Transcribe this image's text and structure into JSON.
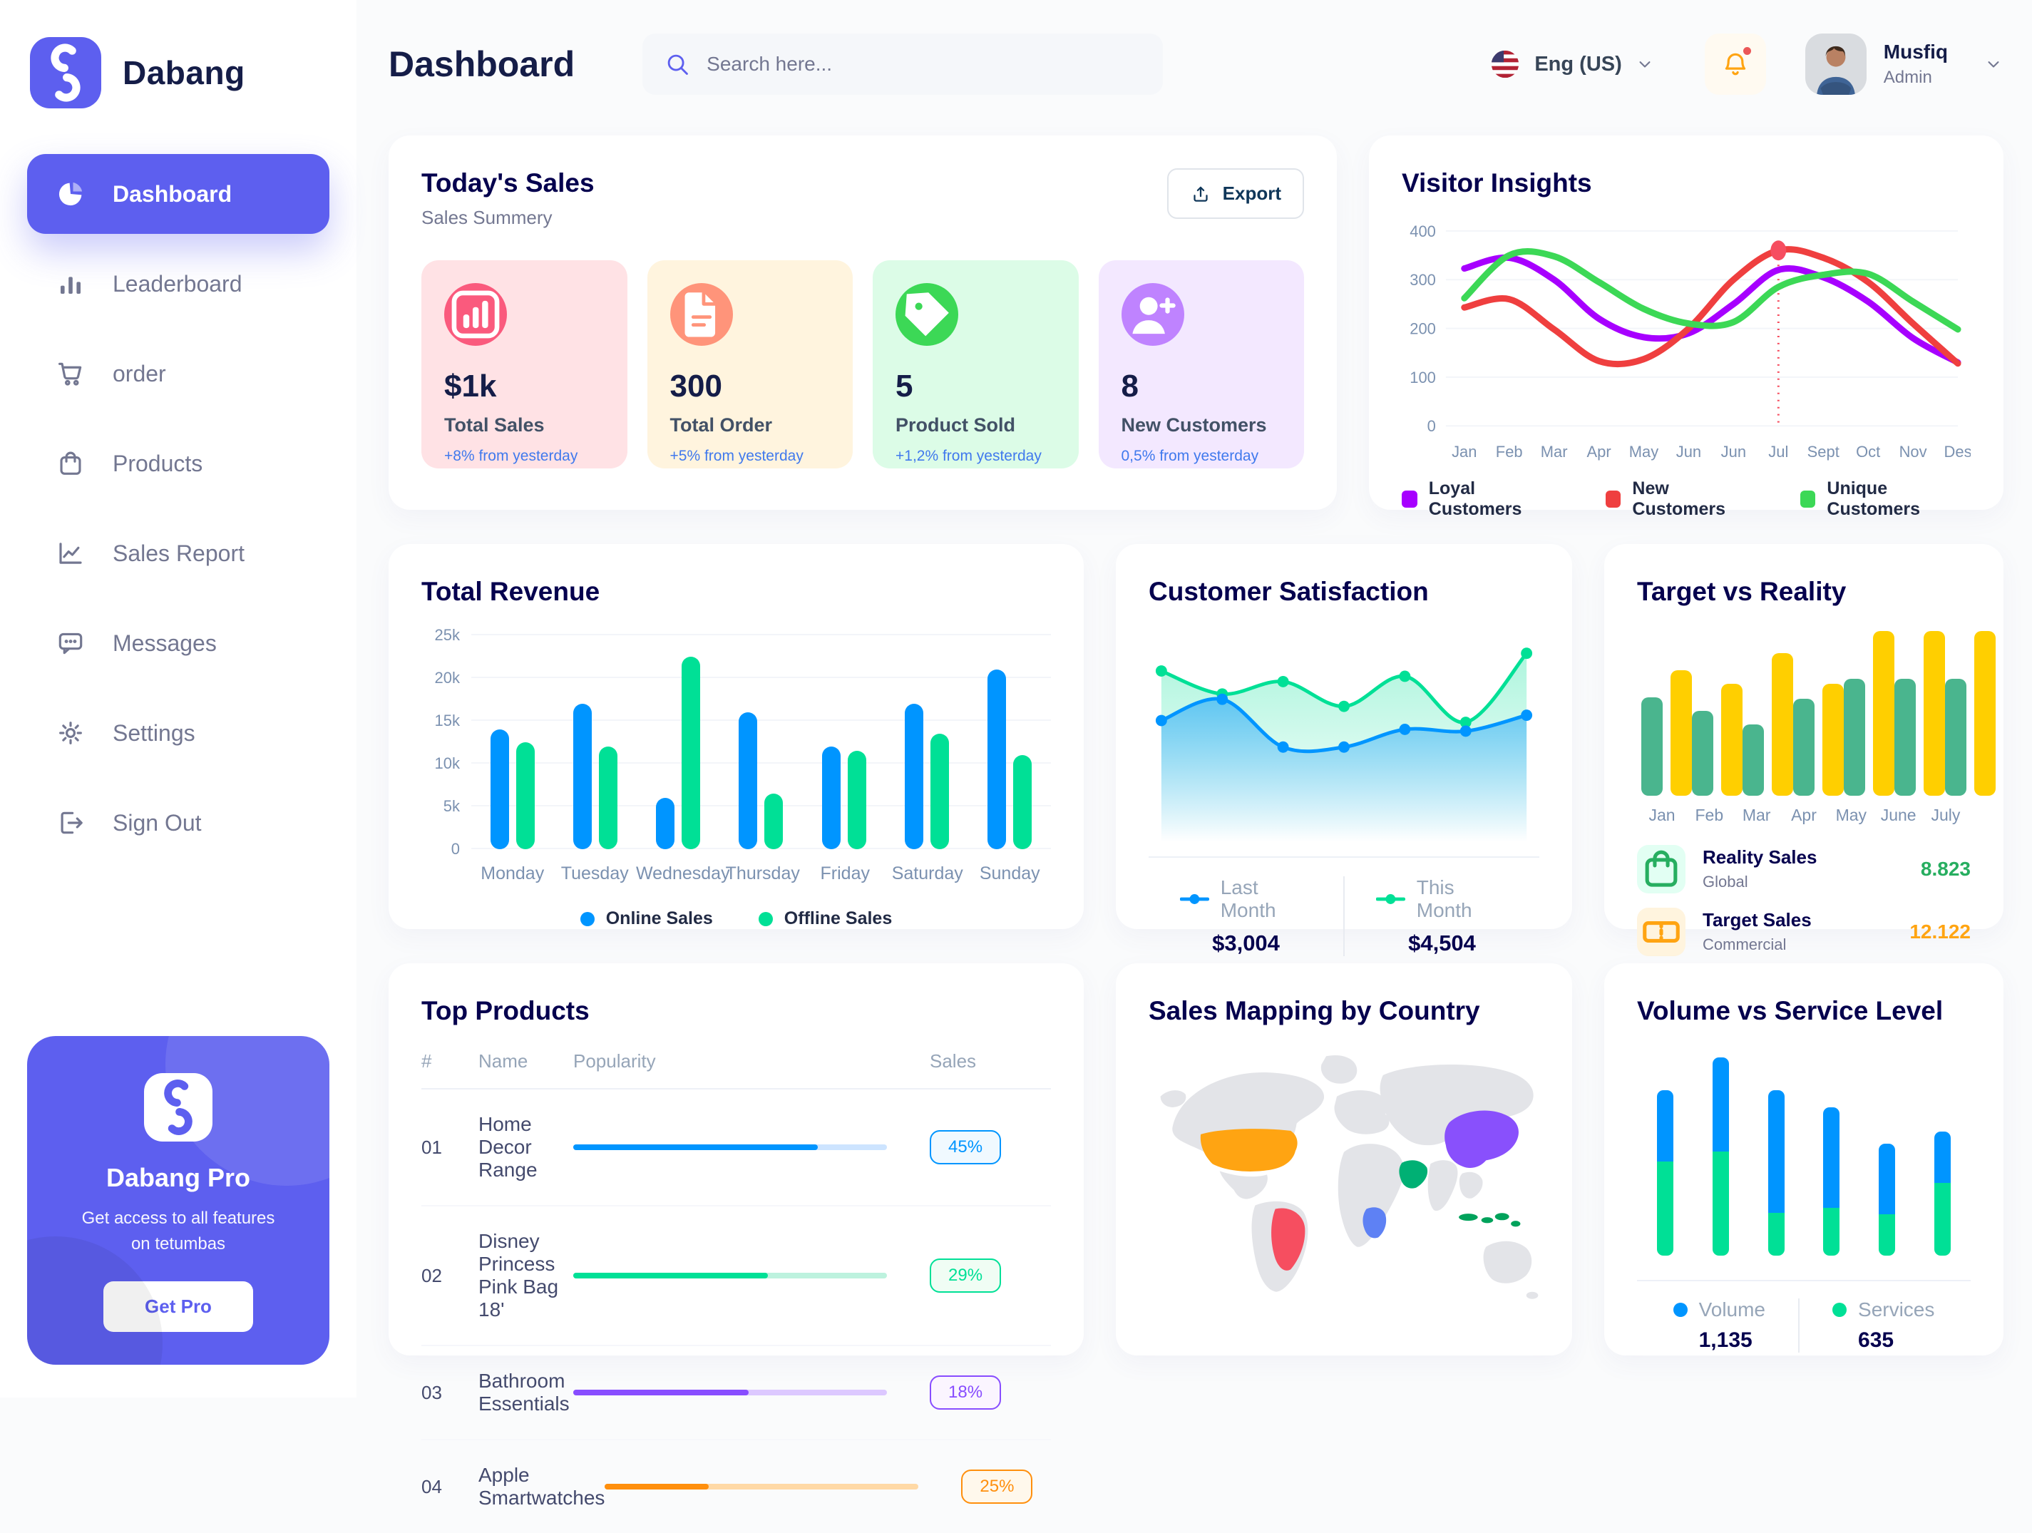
{
  "brand": {
    "name": "Dabang"
  },
  "header": {
    "title": "Dashboard",
    "search_placeholder": "Search here...",
    "language": "Eng (US)",
    "user": {
      "name": "Musfiq",
      "role": "Admin"
    }
  },
  "sidebar": {
    "items": [
      {
        "label": "Dashboard",
        "icon": "pie-chart-icon",
        "active": true
      },
      {
        "label": "Leaderboard",
        "icon": "bar-chart-icon",
        "active": false
      },
      {
        "label": "order",
        "icon": "cart-icon",
        "active": false
      },
      {
        "label": "Products",
        "icon": "bag-icon",
        "active": false
      },
      {
        "label": "Sales Report",
        "icon": "line-chart-icon",
        "active": false
      },
      {
        "label": "Messages",
        "icon": "message-icon",
        "active": false
      },
      {
        "label": "Settings",
        "icon": "gear-icon",
        "active": false
      },
      {
        "label": "Sign Out",
        "icon": "sign-out-icon",
        "active": false
      }
    ],
    "promo": {
      "title": "Dabang Pro",
      "description": "Get access to all features on tetumbas",
      "button": "Get Pro"
    }
  },
  "today_sales": {
    "title": "Today's Sales",
    "subtitle": "Sales Summery",
    "export_label": "Export",
    "delta_color": "#4079ED",
    "stats": [
      {
        "value": "$1k",
        "label": "Total Sales",
        "delta": "+8% from yesterday",
        "bg": "#FFE2E5",
        "circle": "#FA5A7D",
        "icon": "stats-bars-icon"
      },
      {
        "value": "300",
        "label": "Total Order",
        "delta": "+5% from yesterday",
        "bg": "#FFF4DE",
        "circle": "#FF947A",
        "icon": "file-icon"
      },
      {
        "value": "5",
        "label": "Product Sold",
        "delta": "+1,2% from yesterday",
        "bg": "#DCFCE7",
        "circle": "#3CD856",
        "icon": "tag-icon"
      },
      {
        "value": "8",
        "label": "New Customers",
        "delta": "0,5% from yesterday",
        "bg": "#F3E8FF",
        "circle": "#BF83FF",
        "icon": "user-plus-icon"
      }
    ]
  },
  "chart_data": [
    {
      "id": "visitor_insights",
      "type": "line",
      "title": "Visitor Insights",
      "x": [
        "Jan",
        "Feb",
        "Mar",
        "Apr",
        "May",
        "Jun",
        "Jun",
        "Jul",
        "Sept",
        "Oct",
        "Nov",
        "Des"
      ],
      "ylim": [
        0,
        400
      ],
      "yticks": [
        0,
        100,
        200,
        300,
        400
      ],
      "grid": true,
      "legend_position": "bottom",
      "series": [
        {
          "name": "Loyal Customers",
          "color": "#A700FF",
          "values": [
            323,
            345,
            300,
            220,
            182,
            190,
            250,
            320,
            305,
            255,
            180,
            130
          ]
        },
        {
          "name": "New Customers",
          "color": "#EF3F3F",
          "values": [
            243,
            260,
            198,
            133,
            137,
            200,
            300,
            360,
            345,
            295,
            210,
            128
          ]
        },
        {
          "name": "Unique Customers",
          "color": "#3CD856",
          "values": [
            262,
            350,
            348,
            295,
            240,
            210,
            213,
            285,
            310,
            312,
            255,
            198
          ]
        }
      ],
      "annotation": {
        "x_index": 7,
        "series": "New Customers",
        "value": 360,
        "marker_color": "#F64E60"
      }
    },
    {
      "id": "total_revenue",
      "type": "bar",
      "title": "Total Revenue",
      "categories": [
        "Monday",
        "Tuesday",
        "Wednesday",
        "Thursday",
        "Friday",
        "Saturday",
        "Sunday"
      ],
      "ylim": [
        0,
        25
      ],
      "yticks": [
        "0",
        "5k",
        "10k",
        "15k",
        "20k",
        "25k"
      ],
      "unit": "k",
      "series": [
        {
          "name": "Online Sales",
          "color": "#0095FF",
          "values": [
            14,
            17,
            6,
            16,
            12,
            17,
            21
          ]
        },
        {
          "name": "Offline Sales",
          "color": "#00E096",
          "values": [
            12.5,
            12,
            22.5,
            6.5,
            11.5,
            13.5,
            11
          ]
        }
      ]
    },
    {
      "id": "customer_satisfaction",
      "type": "area",
      "title": "Customer Satisfaction",
      "ylim": [
        0,
        100
      ],
      "series": [
        {
          "name": "Last Month",
          "color": "#0095FF",
          "total": "$3,004",
          "values": [
            55,
            67,
            40,
            40,
            50,
            49,
            58
          ]
        },
        {
          "name": "This Month",
          "color": "#00E096",
          "total": "$4,504",
          "values": [
            83,
            70,
            77,
            63,
            80,
            54,
            93
          ]
        }
      ]
    },
    {
      "id": "target_vs_reality",
      "type": "bar",
      "title": "Target vs Reality",
      "categories": [
        "Jan",
        "Feb",
        "Mar",
        "Apr",
        "May",
        "June",
        "July"
      ],
      "ylim": [
        0,
        100
      ],
      "series": [
        {
          "name": "Reality Sales",
          "subtitle": "Global",
          "color": "#4AB58E",
          "value_label": "8.823",
          "value_color": "#27AE60",
          "icon": "shopping-bag-icon",
          "icon_bg": "#E2FFF3",
          "values": [
            58,
            50,
            42,
            57,
            69,
            69,
            69
          ]
        },
        {
          "name": "Target Sales",
          "subtitle": "Commercial",
          "color": "#FFCF00",
          "value_label": "12.122",
          "value_color": "#FFA412",
          "icon": "ticket-icon",
          "icon_bg": "#FFF4DE",
          "values": [
            74,
            66,
            84,
            66,
            97,
            97,
            97
          ]
        }
      ]
    },
    {
      "id": "volume_service",
      "type": "stacked-bar",
      "title": "Volume vs Service Level",
      "ylim": [
        0,
        125
      ],
      "series": [
        {
          "name": "Volume",
          "color": "#0095FF",
          "total": "1,135",
          "values": [
            43,
            57,
            74,
            61,
            43,
            31
          ]
        },
        {
          "name": "Services",
          "color": "#00E096",
          "total": "635",
          "values": [
            57,
            63,
            26,
            29,
            25,
            44
          ]
        }
      ]
    },
    {
      "id": "top_products",
      "type": "table",
      "title": "Top Products",
      "headers": [
        "#",
        "Name",
        "Popularity",
        "Sales"
      ],
      "rows": [
        {
          "num": "01",
          "name": "Home Decor Range",
          "popularity": 0.78,
          "sales": "45%",
          "color": "#0095FF",
          "track": "#CDE4FF",
          "badge_bg": "#F0F9FF"
        },
        {
          "num": "02",
          "name": "Disney Princess Pink Bag 18'",
          "popularity": 0.62,
          "sales": "29%",
          "color": "#00E096",
          "track": "#BDF2DE",
          "badge_bg": "#F0FDF4"
        },
        {
          "num": "03",
          "name": "Bathroom Essentials",
          "popularity": 0.56,
          "sales": "18%",
          "color": "#884DFF",
          "track": "#DCC8FF",
          "badge_bg": "#FBF5FF"
        },
        {
          "num": "04",
          "name": "Apple Smartwatches",
          "popularity": 0.33,
          "sales": "25%",
          "color": "#FF8F0D",
          "track": "#FFD9A6",
          "badge_bg": "#FFF8EC"
        }
      ]
    },
    {
      "id": "sales_map",
      "type": "map",
      "title": "Sales Mapping by Country",
      "countries": [
        {
          "id": "usa",
          "name": "United States",
          "color": "#FFA412"
        },
        {
          "id": "brazil",
          "name": "Brazil",
          "color": "#F64E60"
        },
        {
          "id": "china",
          "name": "China",
          "color": "#8950FC"
        },
        {
          "id": "saudi",
          "name": "Saudi Arabia",
          "color": "#00B074"
        },
        {
          "id": "congo",
          "name": "DR Congo",
          "color": "#5E81F4"
        },
        {
          "id": "indonesia",
          "name": "Indonesia",
          "color": "#00A25B"
        }
      ]
    }
  ]
}
